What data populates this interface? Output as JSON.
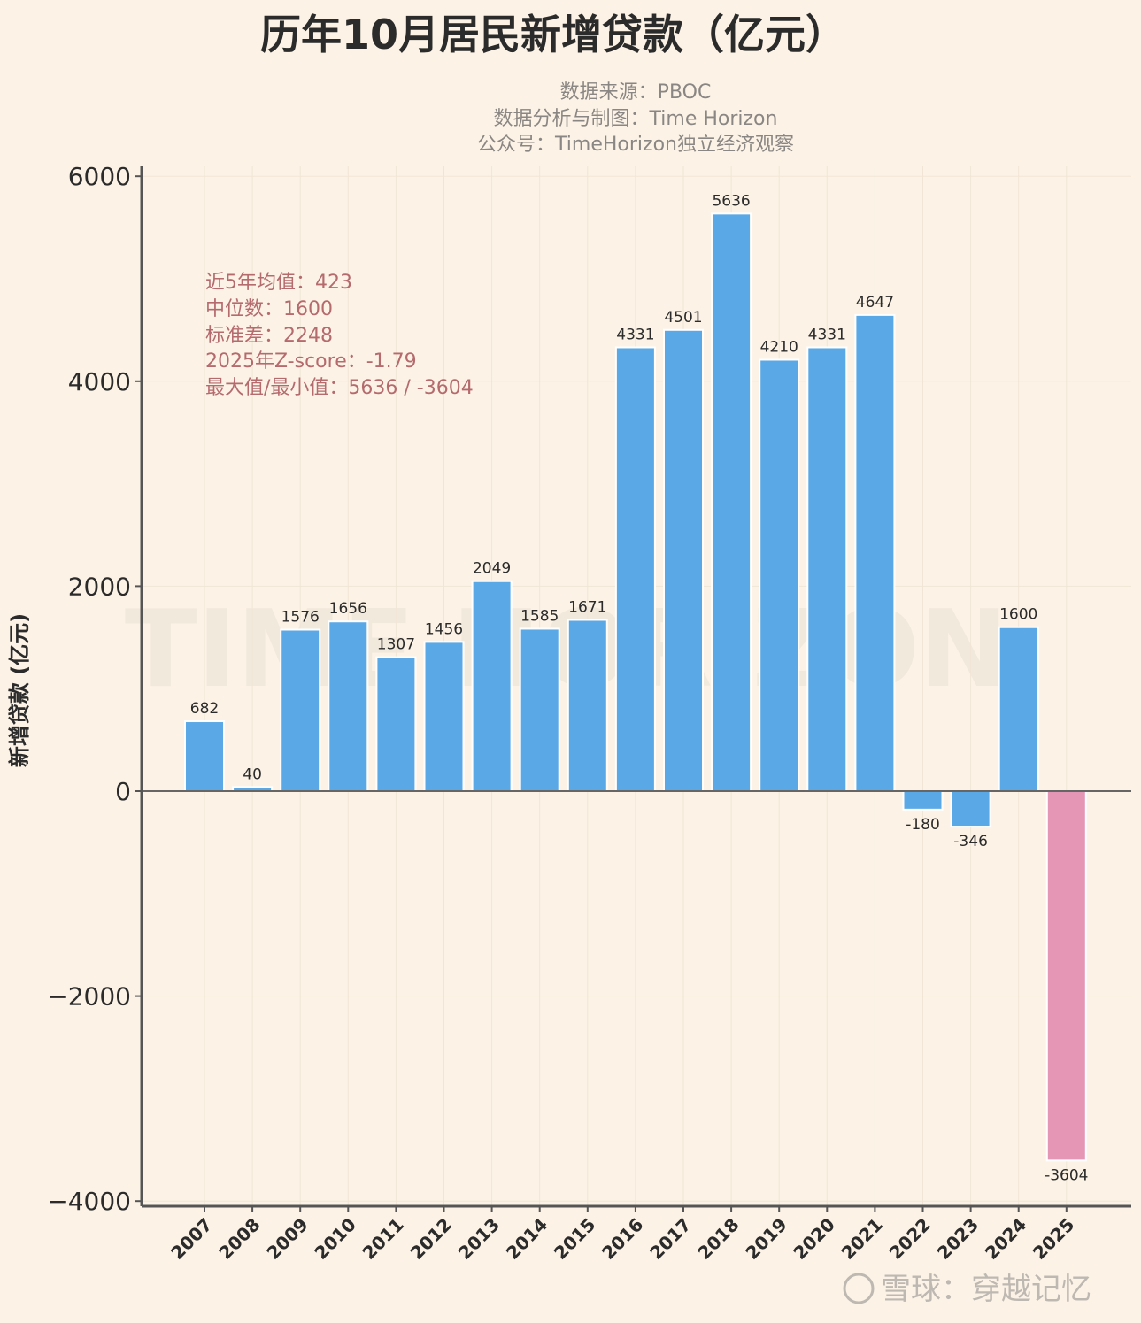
{
  "chart_data": {
    "type": "bar",
    "title": "历年10月居民新增贷款（亿元）",
    "subtitles": [
      "数据来源：PBOC",
      "数据分析与制图：Time Horizon",
      "公众号：TimeHorizon独立经济观察"
    ],
    "xlabel": "",
    "ylabel": "新增贷款 (亿元)",
    "ylim": [
      -4000,
      6000
    ],
    "yticks": [
      6000,
      4000,
      2000,
      0,
      -2000,
      -4000
    ],
    "ytick_labels": [
      "6000",
      "4000",
      "2000",
      "0",
      "−2000",
      "−4000"
    ],
    "categories": [
      "2007",
      "2008",
      "2009",
      "2010",
      "2011",
      "2012",
      "2013",
      "2014",
      "2015",
      "2016",
      "2017",
      "2018",
      "2019",
      "2020",
      "2021",
      "2022",
      "2023",
      "2024",
      "2025"
    ],
    "values": [
      682,
      40,
      1576,
      1656,
      1307,
      1456,
      2049,
      1585,
      1671,
      4331,
      4501,
      5636,
      4210,
      4331,
      4647,
      -180,
      -346,
      1600,
      -3604
    ],
    "highlight_category": "2025",
    "colors": {
      "bar": "#5aa9e6",
      "highlight": "#e596b5",
      "background": "#fcf3e6",
      "stats_text": "#b56a6e"
    },
    "grid": true,
    "annotations": [
      "近5年均值：423",
      "中位数：1600",
      "标准差：2248",
      "2025年Z-score：-1.79",
      "最大值/最小值：5636 / -3604"
    ],
    "watermark": "TIME HORIZON"
  },
  "footer_watermark": "雪球：穿越记忆"
}
